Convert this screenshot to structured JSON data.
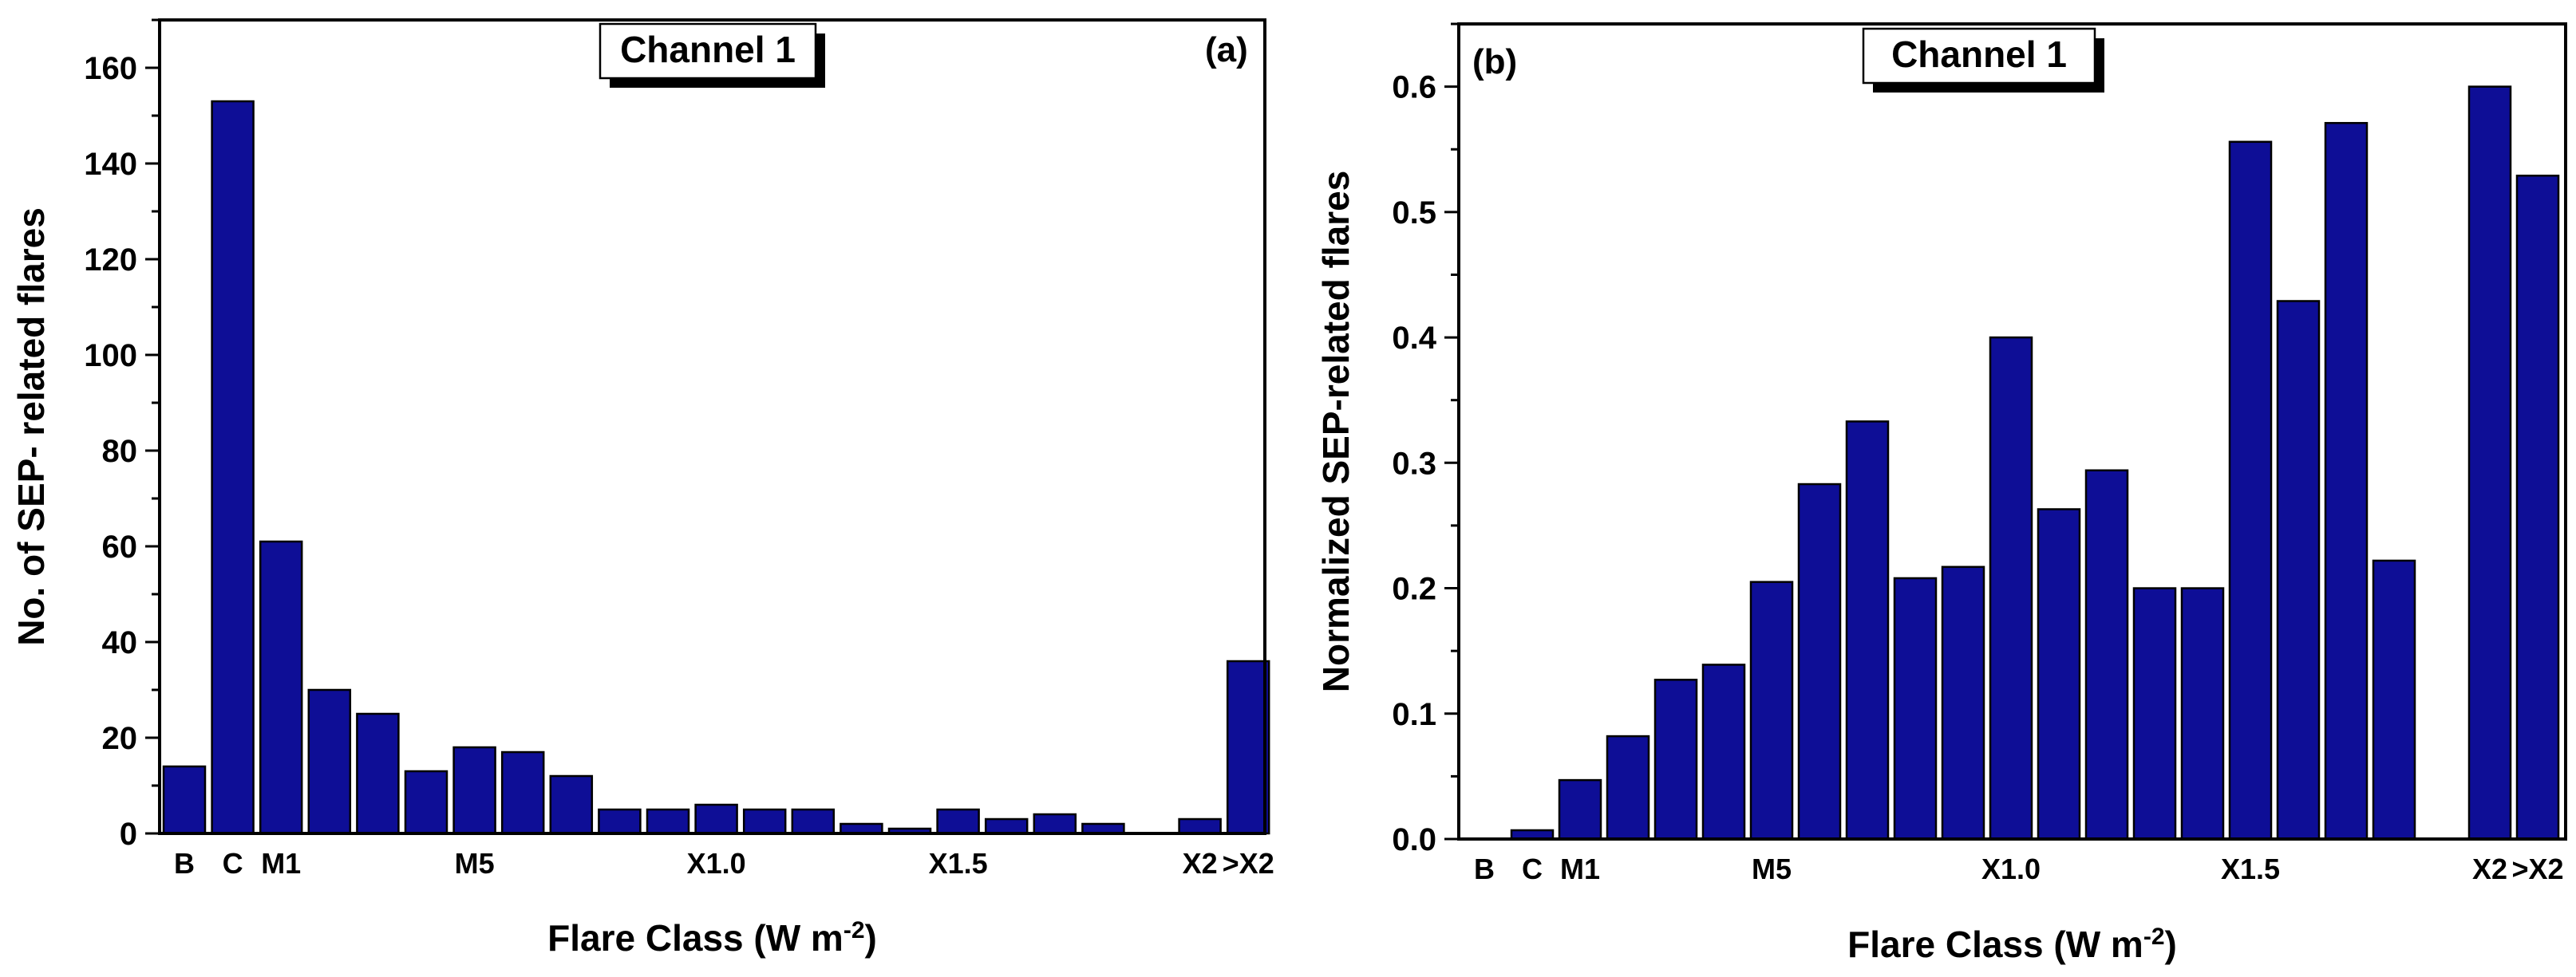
{
  "chart_data": [
    {
      "type": "bar",
      "panel_label": "(a)",
      "legend": "Channel 1",
      "ylabel": "No. of SEP- related flares",
      "xlabel": "Flare Class (W m",
      "xlabel_sup": "-2",
      "xlabel_end": ")",
      "ylim": [
        0,
        170
      ],
      "yticks": [
        0,
        20,
        40,
        60,
        80,
        100,
        120,
        140,
        160
      ],
      "category_labels": [
        "B",
        "C",
        "M1",
        "M5",
        "X1.0",
        "X1.5",
        "X2",
        ">X2"
      ],
      "category_label_slots": [
        0,
        1,
        2,
        6,
        11,
        16,
        21,
        22
      ],
      "values": [
        14,
        153,
        61,
        30,
        25,
        13,
        18,
        17,
        12,
        5,
        5,
        6,
        5,
        5,
        2,
        1,
        5,
        3,
        4,
        2,
        null,
        3,
        36
      ]
    },
    {
      "type": "bar",
      "panel_label": "(b)",
      "legend": "Channel 1",
      "ylabel": "Normalized SEP-related flares",
      "xlabel": "Flare Class (W m",
      "xlabel_sup": "-2",
      "xlabel_end": ")",
      "ylim": [
        0,
        0.65
      ],
      "yticks": [
        "0.0",
        "0.1",
        "0.2",
        "0.3",
        "0.4",
        "0.5",
        "0.6"
      ],
      "category_labels": [
        "B",
        "C",
        "M1",
        "M5",
        "X1.0",
        "X1.5",
        "X2",
        ">X2"
      ],
      "category_label_slots": [
        0,
        1,
        2,
        6,
        11,
        16,
        21,
        22
      ],
      "values": [
        0,
        0.007,
        0.047,
        0.082,
        0.127,
        0.139,
        0.205,
        0.283,
        0.333,
        0.208,
        0.217,
        0.4,
        0.263,
        0.294,
        0.2,
        0.2,
        0.556,
        0.429,
        0.571,
        0.222,
        null,
        0.6,
        0.529
      ]
    }
  ]
}
